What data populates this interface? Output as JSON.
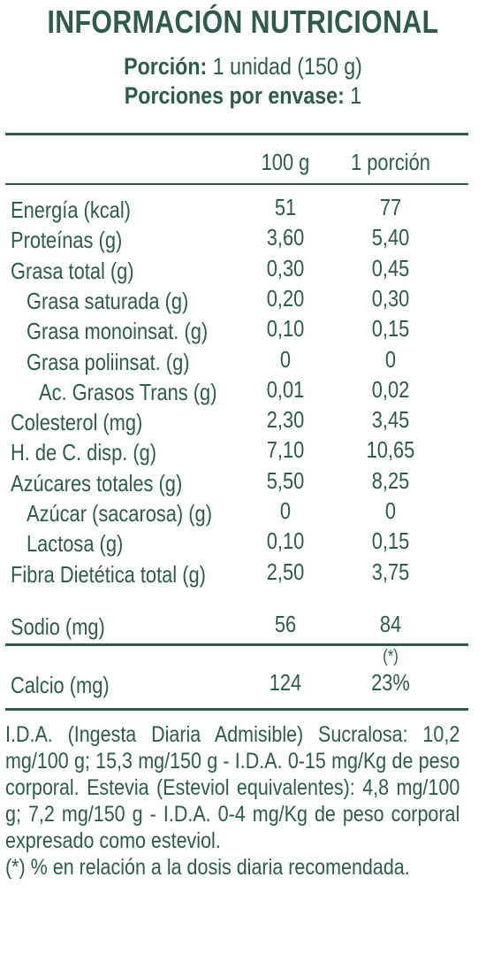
{
  "title": "INFORMACIÓN NUTRICIONAL",
  "serving": {
    "label": "Porción:",
    "value": "1 unidad (150 g)"
  },
  "servings_per_package": {
    "label": "Porciones por envase:",
    "value": "1"
  },
  "columns": {
    "per100": "100 g",
    "perServing": "1 porción"
  },
  "rows": [
    {
      "label": "Energía (kcal)",
      "per100": "51",
      "perServing": "77",
      "indent": 0
    },
    {
      "label": "Proteínas (g)",
      "per100": "3,60",
      "perServing": "5,40",
      "indent": 0
    },
    {
      "label": "Grasa total (g)",
      "per100": "0,30",
      "perServing": "0,45",
      "indent": 0
    },
    {
      "label": "Grasa saturada (g)",
      "per100": "0,20",
      "perServing": "0,30",
      "indent": 1
    },
    {
      "label": "Grasa monoinsat. (g)",
      "per100": "0,10",
      "perServing": "0,15",
      "indent": 1
    },
    {
      "label": "Grasa poliinsat. (g)",
      "per100": "0",
      "perServing": "0",
      "indent": 1
    },
    {
      "label": "Ac. Grasos Trans (g)",
      "per100": "0,01",
      "perServing": "0,02",
      "indent": 2
    },
    {
      "label": "Colesterol (mg)",
      "per100": "2,30",
      "perServing": "3,45",
      "indent": 0
    },
    {
      "label": "H. de C. disp. (g)",
      "per100": "7,10",
      "perServing": "10,65",
      "indent": 0
    },
    {
      "label": "Azúcares totales (g)",
      "per100": "5,50",
      "perServing": "8,25",
      "indent": 0
    },
    {
      "label": "Azúcar (sacarosa) (g)",
      "per100": "0",
      "perServing": "0",
      "indent": 1
    },
    {
      "label": "Lactosa (g)",
      "per100": "0,10",
      "perServing": "0,15",
      "indent": 1
    },
    {
      "label": "Fibra Dietética total (g)",
      "per100": "2,50",
      "perServing": "3,75",
      "indent": 0
    }
  ],
  "sodium": {
    "label": "Sodio (mg)",
    "per100": "56",
    "perServing": "84"
  },
  "calcium": {
    "label": "Calcio (mg)",
    "per100": "124",
    "perServing": "23%",
    "note_mark": "(*)"
  },
  "footnotes": {
    "ida": "I.D.A. (Ingesta Diaria Admisible) Sucralosa: 10,2 mg/100 g; 15,3 mg/150 g - I.D.A. 0-15 mg/Kg de peso corporal. Estevia (Esteviol equivalentes): 4,8 mg/100 g; 7,2 mg/150 g - I.D.A. 0-4 mg/Kg de peso corporal expresado como esteviol.",
    "percent": "(*) % en relación a la dosis diaria recomendada."
  }
}
